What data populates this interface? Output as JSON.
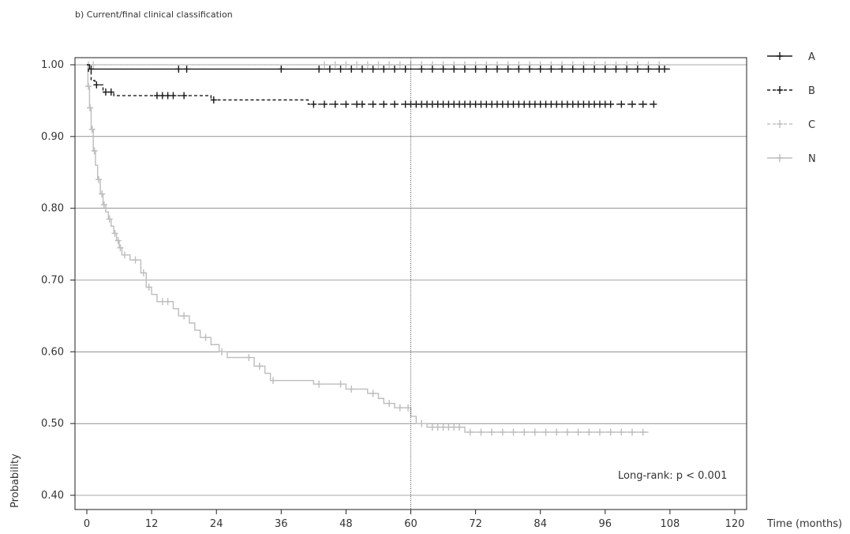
{
  "chart_data": {
    "type": "line",
    "title": "b) Current/final clinical classification",
    "xlabel": "Time (months)",
    "ylabel": "Probability",
    "xlim": [
      0,
      120
    ],
    "ylim": [
      0.4,
      1.0
    ],
    "x_ticks": [
      "0",
      "12",
      "24",
      "36",
      "48",
      "60",
      "72",
      "84",
      "96",
      "108",
      "120"
    ],
    "y_ticks": [
      "0.40",
      "0.50",
      "0.60",
      "0.70",
      "0.80",
      "0.90",
      "1.00"
    ],
    "grid": "horizontal",
    "reference_line_x": 60,
    "legend_position": "top-right",
    "annotation": "Long-rank: p < 0.001",
    "series": [
      {
        "name": "A",
        "color": "#1a1a1a",
        "dash": "solid",
        "steps": [
          [
            0,
            1.0
          ],
          [
            0.5,
            0.994
          ],
          [
            108,
            0.994
          ]
        ],
        "censors": [
          0.8,
          17,
          18.5,
          36,
          43,
          45,
          47,
          49,
          51,
          53,
          55,
          57,
          59,
          62,
          64,
          66,
          68,
          70,
          72,
          74,
          76,
          78,
          80,
          82,
          84,
          86,
          88,
          90,
          92,
          94,
          96,
          98,
          100,
          102,
          104,
          106,
          107
        ]
      },
      {
        "name": "B",
        "color": "#1a1a1a",
        "dash": "dashed",
        "steps": [
          [
            0,
            1.0
          ],
          [
            0.3,
            0.99
          ],
          [
            0.8,
            0.978
          ],
          [
            1.5,
            0.972
          ],
          [
            3,
            0.962
          ],
          [
            5,
            0.957
          ],
          [
            23,
            0.951
          ],
          [
            41,
            0.945
          ],
          [
            105,
            0.945
          ]
        ],
        "censors": [
          1.8,
          3.5,
          4.5,
          13,
          14,
          15,
          16,
          18,
          23.5,
          42,
          44,
          46,
          48,
          50,
          51,
          53,
          55,
          57,
          59,
          60,
          61,
          62,
          63,
          64,
          65,
          66,
          67,
          68,
          69,
          70,
          71,
          72,
          73,
          74,
          75,
          76,
          77,
          78,
          79,
          80,
          81,
          82,
          83,
          84,
          85,
          86,
          87,
          88,
          89,
          90,
          91,
          92,
          93,
          94,
          95,
          96,
          97,
          99,
          101,
          103,
          105
        ]
      },
      {
        "name": "C",
        "color": "#c2c2c2",
        "dash": "dashed",
        "steps": [
          [
            0,
            1.0
          ],
          [
            108,
            1.0
          ]
        ],
        "censors": [
          0.3,
          1.2,
          44,
          46,
          48,
          50,
          52,
          54,
          56,
          58,
          60,
          62,
          64,
          66,
          68,
          70,
          72,
          74,
          76,
          78,
          80,
          82,
          84,
          86,
          88,
          90,
          92,
          94,
          96,
          98,
          100,
          102,
          104,
          106
        ]
      },
      {
        "name": "N",
        "color": "#bdbdbd",
        "dash": "solid",
        "steps": [
          [
            0,
            1.0
          ],
          [
            0.2,
            0.97
          ],
          [
            0.5,
            0.94
          ],
          [
            0.8,
            0.91
          ],
          [
            1.2,
            0.88
          ],
          [
            1.6,
            0.86
          ],
          [
            2,
            0.84
          ],
          [
            2.5,
            0.82
          ],
          [
            3,
            0.805
          ],
          [
            3.5,
            0.795
          ],
          [
            4,
            0.785
          ],
          [
            4.5,
            0.775
          ],
          [
            5,
            0.765
          ],
          [
            5.5,
            0.755
          ],
          [
            6,
            0.745
          ],
          [
            6.5,
            0.735
          ],
          [
            8,
            0.728
          ],
          [
            10,
            0.71
          ],
          [
            11,
            0.69
          ],
          [
            12,
            0.68
          ],
          [
            13,
            0.67
          ],
          [
            16,
            0.66
          ],
          [
            17,
            0.65
          ],
          [
            19,
            0.64
          ],
          [
            20,
            0.63
          ],
          [
            21,
            0.62
          ],
          [
            23,
            0.61
          ],
          [
            24.5,
            0.6
          ],
          [
            26,
            0.592
          ],
          [
            31,
            0.58
          ],
          [
            33,
            0.57
          ],
          [
            34,
            0.56
          ],
          [
            42,
            0.555
          ],
          [
            48,
            0.548
          ],
          [
            52,
            0.542
          ],
          [
            54,
            0.535
          ],
          [
            55,
            0.528
          ],
          [
            57,
            0.522
          ],
          [
            60,
            0.51
          ],
          [
            61,
            0.5
          ],
          [
            63,
            0.495
          ],
          [
            70,
            0.488
          ],
          [
            104,
            0.488
          ]
        ],
        "censors": [
          0.3,
          0.6,
          1.0,
          1.4,
          2.2,
          2.8,
          3.2,
          4.2,
          5.2,
          5.8,
          6.2,
          7,
          9,
          10.5,
          11.5,
          14,
          15,
          18,
          22,
          25,
          30,
          32,
          34.5,
          43,
          47,
          49,
          53,
          56,
          58,
          59.5,
          62,
          64,
          65,
          66,
          67,
          68,
          69,
          71,
          73,
          75,
          77,
          79,
          81,
          83,
          85,
          87,
          89,
          91,
          93,
          95,
          97,
          99,
          101,
          103
        ]
      }
    ]
  }
}
